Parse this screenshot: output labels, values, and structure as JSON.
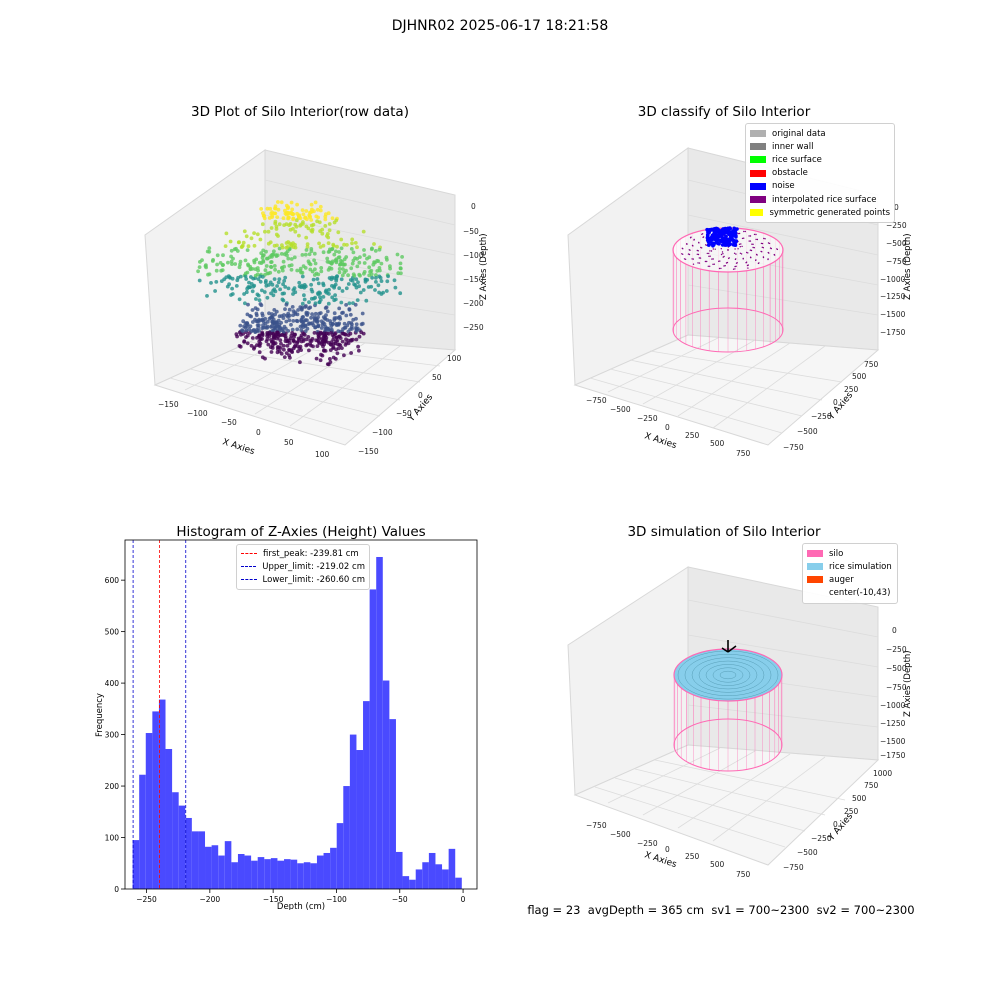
{
  "suptitle": "DJHNR02 2025-06-17 18:21:58",
  "colors": {
    "hist_bar": "#4a4aff",
    "peak_line": "#ff0000",
    "limit_line": "#0000cc",
    "silo_pink": "#ff69b4",
    "rice_sim": "#87ceeb",
    "auger": "#ff4500",
    "noise": "#0000ff"
  },
  "panel_raw": {
    "title": "3D Plot of Silo Interior(row data)",
    "xlabel": "X Axies",
    "ylabel": "Y Axies",
    "zlabel": "Z Axies (Depth)",
    "xticks": [
      "−150",
      "−100",
      "−50",
      "0",
      "50",
      "100"
    ],
    "yticks": [
      "−150",
      "−100",
      "−50",
      "0",
      "50",
      "100"
    ],
    "zticks": [
      "0",
      "−50",
      "−100",
      "−150",
      "−200",
      "−250"
    ]
  },
  "panel_classify": {
    "title": "3D classify of Silo Interior",
    "xlabel": "X Axies",
    "ylabel": "Y Axies",
    "zlabel": "Z Axies (Depth)",
    "xticks": [
      "−750",
      "−500",
      "−250",
      "0",
      "250",
      "500",
      "750"
    ],
    "yticks": [
      "−750",
      "−500",
      "−250",
      "0",
      "250",
      "500",
      "750"
    ],
    "zticks": [
      "0",
      "−250",
      "−500",
      "−750",
      "−1000",
      "−1250",
      "−1500",
      "−1750"
    ],
    "legend": [
      {
        "label": "original data",
        "color": "#b0b0b0"
      },
      {
        "label": "inner wall",
        "color": "#808080"
      },
      {
        "label": "rice surface",
        "color": "#00ff00"
      },
      {
        "label": "obstacle",
        "color": "#ff0000"
      },
      {
        "label": "noise",
        "color": "#0000ff"
      },
      {
        "label": "interpolated rice surface",
        "color": "#800080"
      },
      {
        "label": "symmetric generated points",
        "color": "#ffff00"
      }
    ]
  },
  "panel_sim": {
    "title": "3D simulation of Silo Interior",
    "xlabel": "X Axies",
    "ylabel": "Y Axies",
    "zlabel": "Z Axies (Depth)",
    "xticks": [
      "−750",
      "−500",
      "−250",
      "0",
      "250",
      "500",
      "750"
    ],
    "yticks": [
      "−750",
      "−500",
      "−250",
      "0",
      "250",
      "500",
      "750",
      "1000"
    ],
    "zticks": [
      "0",
      "−250",
      "−500",
      "−750",
      "−1000",
      "−1250",
      "−1500",
      "−1750"
    ],
    "legend": [
      {
        "label": "silo",
        "color": "#ff69b4"
      },
      {
        "label": "rice simulation",
        "color": "#87ceeb"
      },
      {
        "label": "auger",
        "color": "#ff4500"
      },
      {
        "label": "center(-10,43)",
        "color": ""
      }
    ]
  },
  "chart_data": {
    "type": "bar",
    "title": "Histogram of Z-Axies (Height) Values",
    "xlabel": "Depth (cm)",
    "ylabel": "Frequency",
    "xlim": [
      -267,
      11
    ],
    "ylim": [
      0,
      678
    ],
    "xticks": [
      -250,
      -200,
      -150,
      -100,
      -50,
      0
    ],
    "xtick_labels": [
      "−250",
      "−200",
      "−150",
      "−100",
      "−50",
      "0"
    ],
    "yticks": [
      0,
      100,
      200,
      300,
      400,
      500,
      600
    ],
    "yticks_labels": [
      "0",
      "100",
      "200",
      "300",
      "400",
      "500",
      "600"
    ],
    "bin_start": -261,
    "bin_width": 5.2,
    "values": [
      95,
      222,
      303,
      345,
      368,
      272,
      188,
      162,
      138,
      112,
      112,
      82,
      85,
      65,
      93,
      52,
      68,
      65,
      55,
      62,
      58,
      60,
      55,
      58,
      57,
      50,
      52,
      50,
      65,
      70,
      80,
      128,
      200,
      300,
      270,
      365,
      582,
      645,
      405,
      330,
      72,
      25,
      18,
      38,
      52,
      70,
      48,
      38,
      78,
      22
    ],
    "lines": [
      {
        "name": "first_peak",
        "value": -239.81,
        "label": "first_peak: -239.81 cm",
        "style": "red"
      },
      {
        "name": "upper_limit",
        "value": -219.02,
        "label": "Upper_limit: -219.02 cm",
        "style": "blue"
      },
      {
        "name": "lower_limit",
        "value": -260.6,
        "label": "Lower_limit: -260.60 cm",
        "style": "blue"
      }
    ]
  },
  "footer": {
    "flag": "flag = 23",
    "avg_depth": "avgDepth = 365 cm",
    "sv1": "sv1 = 700~2300",
    "sv2": "sv2 = 700~2300"
  }
}
